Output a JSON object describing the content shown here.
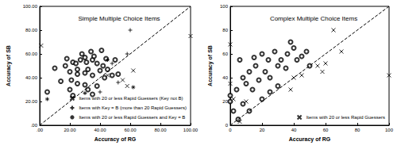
{
  "chart_data": [
    {
      "type": "scatter",
      "title": "Simple Multiple Choice Items",
      "x_label": "Accuracy of RG",
      "y_label": "Accuracy of SB",
      "xlim": [
        0,
        100
      ],
      "ylim": [
        0,
        100
      ],
      "xticks": [
        {
          "value": 0,
          "label": ".00"
        },
        {
          "value": 20,
          "label": "20.00"
        },
        {
          "value": 40,
          "label": "40.00"
        },
        {
          "value": 60,
          "label": "60.00"
        },
        {
          "value": 80,
          "label": "80.00"
        },
        {
          "value": 100,
          "label": "100.00"
        }
      ],
      "yticks": [
        {
          "value": 0,
          "label": ".00"
        },
        {
          "value": 20,
          "label": "20.00"
        },
        {
          "value": 40,
          "label": "40.00"
        },
        {
          "value": 60,
          "label": "60.00"
        },
        {
          "value": 80,
          "label": "80.00"
        },
        {
          "value": 100,
          "label": "100.00"
        }
      ],
      "grid": false,
      "legend": "lower right",
      "series": [
        {
          "type": "line",
          "line_style": "dashed",
          "color": "#000000",
          "x": [
            0,
            100
          ],
          "values": [
            0,
            100
          ]
        },
        {
          "marker": "circle",
          "color": "#000000",
          "x": [
            5,
            10,
            14,
            17,
            18,
            20,
            20,
            21,
            22,
            22,
            24,
            25,
            25,
            27,
            28,
            30,
            30,
            30,
            31,
            32,
            34,
            35,
            35,
            36,
            38,
            38,
            40,
            41,
            42,
            43,
            44,
            45,
            48,
            50,
            52,
            35,
            25,
            32
          ],
          "values": [
            28,
            48,
            37,
            50,
            56,
            45,
            30,
            38,
            25,
            53,
            52,
            43,
            47,
            55,
            60,
            57,
            34,
            44,
            53,
            47,
            62,
            55,
            42,
            58,
            52,
            33,
            46,
            63,
            50,
            40,
            56,
            47,
            42,
            55,
            43,
            26,
            35,
            30
          ]
        },
        {
          "name": "Items with 20 or less Rapid Guessers (Key not B)",
          "marker": "x",
          "color": "#000000",
          "x": [
            1,
            45,
            55,
            58,
            62,
            100
          ],
          "values": [
            67,
            42,
            38,
            33,
            46,
            75
          ]
        },
        {
          "name": "Items with Key = B (more than 20 Rapid Guessers)",
          "marker": "plus",
          "color": "#000000",
          "x": [
            60,
            58,
            48,
            52,
            40
          ],
          "values": [
            80,
            60,
            52,
            36,
            28
          ]
        },
        {
          "name": "Items with 20 or less Rapid Guessers and Key = B",
          "marker": "star",
          "color": "#000000",
          "x": [
            30,
            45,
            62,
            5
          ],
          "values": [
            27,
            55,
            32,
            22
          ]
        }
      ]
    },
    {
      "type": "scatter",
      "title": "Complex Multiple Choice Items",
      "x_label": "Accuracy of RG",
      "y_label": "Accuracy of SB",
      "xlim": [
        0,
        100
      ],
      "ylim": [
        0,
        100
      ],
      "xticks": [
        0,
        20,
        40,
        60,
        80,
        100
      ],
      "yticks": [
        0,
        20,
        40,
        60,
        80,
        100
      ],
      "grid": false,
      "legend": "lower right",
      "series": [
        {
          "type": "line",
          "line_style": "dashed",
          "color": "#000000",
          "x": [
            0,
            100
          ],
          "values": [
            0,
            100
          ]
        },
        {
          "marker": "circle",
          "color": "#000000",
          "x": [
            0,
            0,
            2,
            4,
            6,
            8,
            10,
            12,
            14,
            15,
            16,
            18,
            20,
            22,
            24,
            25,
            28,
            30,
            32,
            35,
            36,
            38,
            40,
            42,
            45,
            48,
            50,
            20,
            25,
            30,
            5,
            8,
            12
          ],
          "values": [
            20,
            25,
            12,
            30,
            55,
            40,
            35,
            45,
            30,
            57,
            50,
            38,
            60,
            45,
            55,
            40,
            62,
            50,
            55,
            48,
            60,
            70,
            65,
            55,
            58,
            62,
            50,
            22,
            28,
            33,
            5,
            18,
            12
          ]
        },
        {
          "name": "Items with 20 or less Rapid Guessers",
          "marker": "x",
          "color": "#000000",
          "x": [
            0,
            0,
            2,
            6,
            10,
            38,
            45,
            55,
            60,
            65,
            70,
            100,
            58,
            40
          ],
          "values": [
            68,
            35,
            22,
            3,
            20,
            30,
            42,
            50,
            52,
            80,
            62,
            42,
            45,
            40
          ]
        }
      ]
    }
  ]
}
